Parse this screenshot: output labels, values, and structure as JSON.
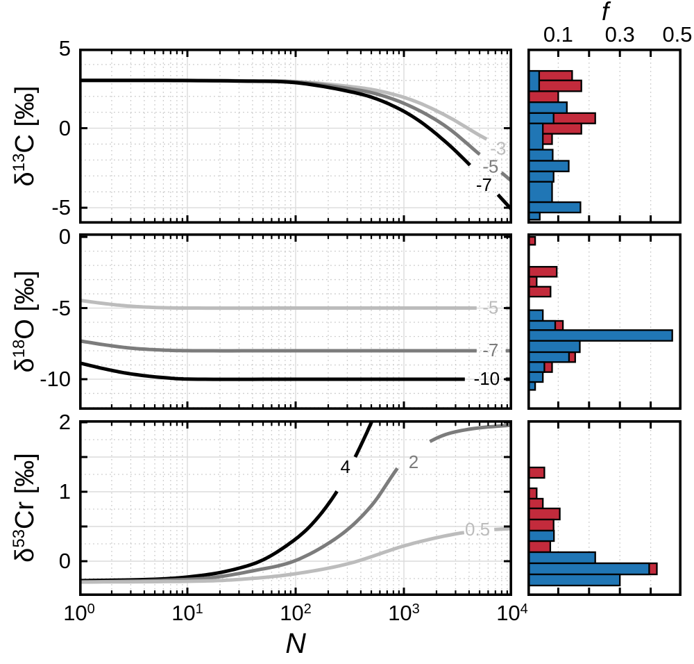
{
  "figure": {
    "x_axis": {
      "label": "N",
      "tick_base": "10",
      "tick_exponents": [
        "0",
        "1",
        "2",
        "3",
        "4"
      ]
    },
    "f_axis": {
      "label": "f",
      "tick_labels": [
        "0.1",
        "0.3",
        "0.5"
      ],
      "tick_values": [
        0.1,
        0.3,
        0.5
      ]
    },
    "palette": {
      "red": "#C32B3C",
      "blue": "#2076B5",
      "black": "#000000",
      "gray": "#7C7C7C",
      "light_gray": "#BCBCBC",
      "grid_major": "#DBDBDB",
      "grid_minor": "#C9C9C9",
      "frame": "#000000"
    }
  },
  "chart_data": [
    {
      "row": 1,
      "line_chart": {
        "type": "line",
        "ylabel": {
          "symbol": "δ",
          "sup": "13",
          "rest": "C [‰]"
        },
        "xscale": "log10",
        "xlim_log10": [
          0,
          4
        ],
        "ylim": [
          -6,
          5
        ],
        "yticks": [
          {
            "v": 5,
            "label": "5"
          },
          {
            "v": 0,
            "label": "0"
          },
          {
            "v": -5,
            "label": "-5"
          }
        ],
        "grid_major_y": [
          0,
          -5
        ],
        "grid_minor_y": [
          4,
          3,
          2,
          1,
          -1,
          -2,
          -3,
          -4
        ],
        "series": [
          {
            "name": "-3",
            "color": "light_gray",
            "gap_log10": [
              3.79,
              3.96
            ],
            "label": {
              "text": "-3",
              "x_log10": 3.87,
              "y": -1.32
            },
            "points": [
              [
                0,
                3
              ],
              [
                0.8,
                3
              ],
              [
                1.5,
                2.98
              ],
              [
                2,
                2.93
              ],
              [
                2.5,
                2.62
              ],
              [
                2.8,
                2.3
              ],
              [
                3.1,
                1.7
              ],
              [
                3.4,
                0.75
              ],
              [
                3.7,
                -0.45
              ],
              [
                4,
                -1.55
              ]
            ]
          },
          {
            "name": "-5",
            "color": "gray",
            "gap_log10": [
              3.71,
              3.9
            ],
            "label": {
              "text": "-5",
              "x_log10": 3.8,
              "y": -2.45
            },
            "points": [
              [
                0,
                3
              ],
              [
                0.8,
                3
              ],
              [
                1.5,
                2.97
              ],
              [
                2,
                2.9
              ],
              [
                2.5,
                2.48
              ],
              [
                2.8,
                2.05
              ],
              [
                3.1,
                1.25
              ],
              [
                3.4,
                0.05
              ],
              [
                3.7,
                -1.65
              ],
              [
                4,
                -3.35
              ]
            ]
          },
          {
            "name": "-7",
            "color": "black",
            "gap_log10": [
              3.63,
              3.85
            ],
            "label": {
              "text": "-7",
              "x_log10": 3.74,
              "y": -3.6
            },
            "points": [
              [
                0,
                3
              ],
              [
                0.8,
                3
              ],
              [
                1.5,
                2.96
              ],
              [
                2,
                2.86
              ],
              [
                2.5,
                2.3
              ],
              [
                2.8,
                1.7
              ],
              [
                3.1,
                0.65
              ],
              [
                3.4,
                -0.95
              ],
              [
                3.7,
                -2.95
              ],
              [
                4,
                -5.15
              ]
            ]
          }
        ]
      },
      "histogram": {
        "type": "histogram",
        "xlim": [
          0,
          0.5
        ],
        "xticks": [
          0.1,
          0.2,
          0.3,
          0.4
        ],
        "series": [
          {
            "name": "red",
            "color": "red",
            "bins": [
              [
                3.6,
                3.0,
                0.145
              ],
              [
                3.0,
                2.32,
                0.175
              ],
              [
                2.32,
                1.63,
                0.1
              ],
              [
                0.95,
                0.3,
                0.22
              ],
              [
                0.3,
                -0.35,
                0.175
              ],
              [
                -0.35,
                -1.0,
                0.08
              ]
            ]
          },
          {
            "name": "blue",
            "color": "blue",
            "bins": [
              [
                3.6,
                2.32,
                0.038
              ],
              [
                1.63,
                0.95,
                0.128
              ],
              [
                0.95,
                0.3,
                0.085
              ],
              [
                0.3,
                -1.35,
                0.05
              ],
              [
                -1.35,
                -2.05,
                0.082
              ],
              [
                -2.05,
                -2.72,
                0.134
              ],
              [
                -2.72,
                -3.37,
                0.085
              ],
              [
                -3.37,
                -4.65,
                0.08
              ],
              [
                -4.65,
                -5.3,
                0.172
              ],
              [
                -5.3,
                -5.75,
                0.04
              ]
            ]
          }
        ]
      }
    },
    {
      "row": 2,
      "line_chart": {
        "type": "line",
        "ylabel": {
          "symbol": "δ",
          "sup": "18",
          "rest": "O [‰]"
        },
        "xscale": "log10",
        "xlim_log10": [
          0,
          4
        ],
        "ylim": [
          -12.15,
          0.25
        ],
        "yticks": [
          {
            "v": 0,
            "label": "0"
          },
          {
            "v": -5,
            "label": "-5"
          },
          {
            "v": -10,
            "label": "-10"
          }
        ],
        "grid_major_y": [
          -5,
          -10
        ],
        "grid_minor_y": [
          -1,
          -2,
          -3,
          -4,
          -6,
          -7,
          -8,
          -9,
          -11,
          -12
        ],
        "series": [
          {
            "name": "-5",
            "color": "light_gray",
            "gap_log10": [
              3.7,
              3.9
            ],
            "label": {
              "text": "-5",
              "x_log10": 3.8,
              "y": -5.0
            },
            "points": [
              [
                0,
                -4.45
              ],
              [
                0.25,
                -4.7
              ],
              [
                0.5,
                -4.88
              ],
              [
                0.8,
                -4.98
              ],
              [
                1.1,
                -5
              ],
              [
                2,
                -5
              ],
              [
                3,
                -5
              ],
              [
                4,
                -5
              ]
            ]
          },
          {
            "name": "-7",
            "color": "gray",
            "gap_log10": [
              3.7,
              3.9
            ],
            "label": {
              "text": "-7",
              "x_log10": 3.8,
              "y": -8.0
            },
            "points": [
              [
                0,
                -7.3
              ],
              [
                0.25,
                -7.6
              ],
              [
                0.5,
                -7.83
              ],
              [
                0.8,
                -7.96
              ],
              [
                1.1,
                -8
              ],
              [
                2,
                -8
              ],
              [
                3,
                -8
              ],
              [
                4,
                -8
              ]
            ]
          },
          {
            "name": "-10",
            "color": "black",
            "gap_log10": [
              3.6,
              3.93
            ],
            "label": {
              "text": "-10",
              "x_log10": 3.765,
              "y": -10.0
            },
            "points": [
              [
                0,
                -8.85
              ],
              [
                0.25,
                -9.3
              ],
              [
                0.5,
                -9.65
              ],
              [
                0.8,
                -9.9
              ],
              [
                1.1,
                -10
              ],
              [
                2,
                -10
              ],
              [
                3,
                -10
              ],
              [
                4,
                -10
              ]
            ]
          }
        ]
      },
      "histogram": {
        "type": "histogram",
        "xlim": [
          0,
          0.5
        ],
        "xticks": [
          0.1,
          0.2,
          0.3,
          0.4
        ],
        "series": [
          {
            "name": "red",
            "color": "red",
            "bins": [
              [
                0.0,
                -0.55,
                0.025
              ],
              [
                -2.1,
                -2.8,
                0.095
              ],
              [
                -2.8,
                -3.5,
                0.03
              ],
              [
                -3.5,
                -4.2,
                0.075
              ],
              [
                -5.9,
                -6.55,
                0.115
              ],
              [
                -8.1,
                -8.8,
                0.155
              ],
              [
                -8.8,
                -9.5,
                0.08
              ]
            ]
          },
          {
            "name": "blue",
            "color": "blue",
            "bins": [
              [
                -5.15,
                -5.9,
                0.05
              ],
              [
                -5.9,
                -6.55,
                0.09
              ],
              [
                -6.55,
                -7.3,
                0.47
              ],
              [
                -7.3,
                -8.1,
                0.17
              ],
              [
                -8.1,
                -8.8,
                0.135
              ],
              [
                -8.8,
                -9.5,
                0.055
              ],
              [
                -9.5,
                -10.2,
                0.05
              ],
              [
                -10.2,
                -10.75,
                0.025
              ]
            ]
          }
        ]
      }
    },
    {
      "row": 3,
      "line_chart": {
        "type": "line",
        "ylabel": {
          "symbol": "δ",
          "sup": "53",
          "rest": "Cr [‰]"
        },
        "xscale": "log10",
        "xlim_log10": [
          0,
          4
        ],
        "ylim": [
          -0.5,
          2.03
        ],
        "yticks": [
          {
            "v": 2,
            "label": "2"
          },
          {
            "v": 1.5
          },
          {
            "v": 1,
            "label": "1"
          },
          {
            "v": 0.5
          },
          {
            "v": 0,
            "label": "0"
          }
        ],
        "grid_major_y": [
          1.5,
          1,
          0.5,
          0
        ],
        "grid_minor_y": [
          1.75,
          1.25,
          0.75,
          0.25,
          -0.25
        ],
        "series": [
          {
            "name": "4",
            "color": "black",
            "gap_log10": [
              2.39,
              2.54
            ],
            "label": {
              "text": "4",
              "x_log10": 2.46,
              "y": 1.35
            },
            "points": [
              [
                0,
                -0.28
              ],
              [
                0.7,
                -0.26
              ],
              [
                1.1,
                -0.21
              ],
              [
                1.4,
                -0.13
              ],
              [
                1.7,
                0.02
              ],
              [
                2.0,
                0.32
              ],
              [
                2.2,
                0.62
              ],
              [
                2.4,
                1.05
              ],
              [
                2.55,
                1.5
              ],
              [
                2.7,
                2.0
              ],
              [
                2.8,
                2.4
              ]
            ]
          },
          {
            "name": "2",
            "color": "gray",
            "gap_log10": [
              2.97,
              3.22
            ],
            "label": {
              "text": "2",
              "x_log10": 3.09,
              "y": 1.42
            },
            "points": [
              [
                0,
                -0.3
              ],
              [
                0.7,
                -0.28
              ],
              [
                1.2,
                -0.24
              ],
              [
                1.6,
                -0.14
              ],
              [
                2.0,
                0.01
              ],
              [
                2.4,
                0.36
              ],
              [
                2.7,
                0.8
              ],
              [
                3.0,
                1.45
              ],
              [
                3.3,
                1.77
              ],
              [
                3.6,
                1.9
              ],
              [
                4,
                1.96
              ]
            ]
          },
          {
            "name": "0.5",
            "color": "light_gray",
            "gap_log10": [
              3.56,
              3.8
            ],
            "label": {
              "text": "0.5",
              "x_log10": 3.68,
              "y": 0.45
            },
            "points": [
              [
                0,
                -0.3
              ],
              [
                1,
                -0.29
              ],
              [
                1.5,
                -0.26
              ],
              [
                2,
                -0.18
              ],
              [
                2.5,
                -0.03
              ],
              [
                3,
                0.22
              ],
              [
                3.4,
                0.37
              ],
              [
                3.7,
                0.44
              ],
              [
                4,
                0.47
              ]
            ]
          }
        ]
      },
      "histogram": {
        "type": "histogram",
        "xlim": [
          0,
          0.5
        ],
        "xticks": [
          0.1,
          0.2,
          0.3,
          0.4
        ],
        "series": [
          {
            "name": "red",
            "color": "red",
            "bins": [
              [
                1.35,
                1.2,
                0.055
              ],
              [
                1.05,
                0.9,
                0.03
              ],
              [
                0.9,
                0.76,
                0.05
              ],
              [
                0.76,
                0.6,
                0.105
              ],
              [
                0.6,
                0.44,
                0.085
              ],
              [
                0.29,
                0.13,
                0.074
              ],
              [
                -0.03,
                -0.19,
                0.42
              ]
            ]
          },
          {
            "name": "blue",
            "color": "blue",
            "bins": [
              [
                0.44,
                0.29,
                0.086
              ],
              [
                0.13,
                -0.03,
                0.22
              ],
              [
                -0.03,
                -0.19,
                0.395
              ],
              [
                -0.19,
                -0.35,
                0.3
              ]
            ]
          }
        ]
      }
    }
  ]
}
